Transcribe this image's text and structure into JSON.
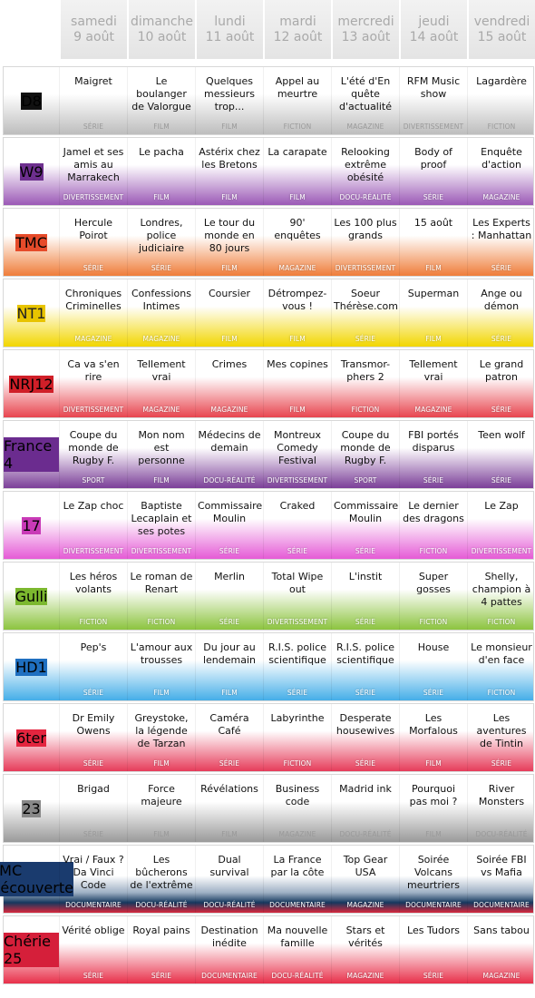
{
  "days": [
    {
      "day": "samedi",
      "date": "9 août"
    },
    {
      "day": "dimanche",
      "date": "10 août"
    },
    {
      "day": "lundi",
      "date": "11 août"
    },
    {
      "day": "mardi",
      "date": "12 août"
    },
    {
      "day": "mercredi",
      "date": "13 août"
    },
    {
      "day": "jeudi",
      "date": "14 août"
    },
    {
      "day": "vendredi",
      "date": "15 août"
    }
  ],
  "channels": [
    {
      "logo": "D8",
      "programs": [
        {
          "title": "Maigret",
          "genre": "SÉRIE"
        },
        {
          "title": "Le boulanger de Valorgue",
          "genre": "FILM"
        },
        {
          "title": "Quelques messieurs trop...",
          "genre": "FILM"
        },
        {
          "title": "Appel au meurtre",
          "genre": "FICTION"
        },
        {
          "title": "L'été d'En quête d'actualité",
          "genre": "MAGAZINE"
        },
        {
          "title": "RFM Music show",
          "genre": "DIVERTISSEMENT"
        },
        {
          "title": "Lagardère",
          "genre": "FICTION"
        }
      ]
    },
    {
      "logo": "W9",
      "programs": [
        {
          "title": "Jamel et ses amis au Marrakech",
          "genre": "DIVERTISSEMENT"
        },
        {
          "title": "Le pacha",
          "genre": "FILM"
        },
        {
          "title": "Astérix chez les Bretons",
          "genre": "FILM"
        },
        {
          "title": "La carapate",
          "genre": "FILM"
        },
        {
          "title": "Relooking extrême obésité",
          "genre": "DOCU-RÉALITÉ"
        },
        {
          "title": "Body of proof",
          "genre": "SÉRIE"
        },
        {
          "title": "Enquête d'action",
          "genre": "MAGAZINE"
        }
      ]
    },
    {
      "logo": "TMC",
      "programs": [
        {
          "title": "Hercule Poirot",
          "genre": "SÉRIE"
        },
        {
          "title": "Londres, police judiciaire",
          "genre": "SÉRIE"
        },
        {
          "title": "Le tour du monde en 80 jours",
          "genre": "FILM"
        },
        {
          "title": "90' enquêtes",
          "genre": "MAGAZINE"
        },
        {
          "title": "Les 100 plus grands",
          "genre": "DIVERTISSEMENT"
        },
        {
          "title": "15 août",
          "genre": "FILM"
        },
        {
          "title": "Les Experts : Manhattan",
          "genre": "SÉRIE"
        }
      ]
    },
    {
      "logo": "NT1",
      "programs": [
        {
          "title": "Chroniques Criminelles",
          "genre": "MAGAZINE"
        },
        {
          "title": "Confessions Intimes",
          "genre": "MAGAZINE"
        },
        {
          "title": "Coursier",
          "genre": "FILM"
        },
        {
          "title": "Détrompez-vous !",
          "genre": "FILM"
        },
        {
          "title": "Soeur Thérèse.com",
          "genre": "SÉRIE"
        },
        {
          "title": "Superman",
          "genre": "FILM"
        },
        {
          "title": "Ange ou démon",
          "genre": "SÉRIE"
        }
      ]
    },
    {
      "logo": "NRJ12",
      "programs": [
        {
          "title": "Ca va s'en rire",
          "genre": "DIVERTISSEMENT"
        },
        {
          "title": "Tellement vrai",
          "genre": "MAGAZINE"
        },
        {
          "title": "Crimes",
          "genre": "MAGAZINE"
        },
        {
          "title": "Mes copines",
          "genre": "FILM"
        },
        {
          "title": "Transmor-phers 2",
          "genre": "FICTION"
        },
        {
          "title": "Tellement vrai",
          "genre": "MAGAZINE"
        },
        {
          "title": "Le grand patron",
          "genre": "SÉRIE"
        }
      ]
    },
    {
      "logo": "France 4",
      "programs": [
        {
          "title": "Coupe du monde de Rugby F.",
          "genre": "SPORT"
        },
        {
          "title": "Mon nom est personne",
          "genre": "FILM"
        },
        {
          "title": "Médecins de demain",
          "genre": "DOCU-RÉALITÉ"
        },
        {
          "title": "Montreux Comedy Festival",
          "genre": "DIVERTISSEMENT"
        },
        {
          "title": "Coupe du monde de Rugby F.",
          "genre": "SPORT"
        },
        {
          "title": "FBI portés disparus",
          "genre": "SÉRIE"
        },
        {
          "title": "Teen wolf",
          "genre": "SÉRIE"
        }
      ]
    },
    {
      "logo": "17",
      "programs": [
        {
          "title": "Le Zap choc",
          "genre": "DIVERTISSEMENT"
        },
        {
          "title": "Baptiste Lecaplain et ses potes",
          "genre": "DIVERTISSEMENT"
        },
        {
          "title": "Commissaire Moulin",
          "genre": "SÉRIE"
        },
        {
          "title": "Craked",
          "genre": "SÉRIE"
        },
        {
          "title": "Commissaire Moulin",
          "genre": "SÉRIE"
        },
        {
          "title": "Le dernier des dragons",
          "genre": "FICTION"
        },
        {
          "title": "Le Zap",
          "genre": "DIVERTISSEMENT"
        }
      ]
    },
    {
      "logo": "Gulli",
      "programs": [
        {
          "title": "Les héros volants",
          "genre": "FICTION"
        },
        {
          "title": "Le roman de Renart",
          "genre": "FICTION"
        },
        {
          "title": "Merlin",
          "genre": "SÉRIE"
        },
        {
          "title": "Total Wipe out",
          "genre": "DIVERTISSEMENT"
        },
        {
          "title": "L'instit",
          "genre": "SÉRIE"
        },
        {
          "title": "Super gosses",
          "genre": "FICTION"
        },
        {
          "title": "Shelly, champion à 4 pattes",
          "genre": "FICTION"
        }
      ]
    },
    {
      "logo": "HD1",
      "programs": [
        {
          "title": "Pep's",
          "genre": "SÉRIE"
        },
        {
          "title": "L'amour aux trousses",
          "genre": "FILM"
        },
        {
          "title": "Du jour au lendemain",
          "genre": "FILM"
        },
        {
          "title": "R.I.S. police scientifique",
          "genre": "SÉRIE"
        },
        {
          "title": "R.I.S. police scientifique",
          "genre": "SÉRIE"
        },
        {
          "title": "House",
          "genre": "SÉRIE"
        },
        {
          "title": "Le monsieur d'en face",
          "genre": "FICTION"
        }
      ]
    },
    {
      "logo": "6ter",
      "programs": [
        {
          "title": "Dr Emily Owens",
          "genre": "SÉRIE"
        },
        {
          "title": "Greystoke, la légende de Tarzan",
          "genre": "FILM"
        },
        {
          "title": "Caméra Café",
          "genre": "SÉRIE"
        },
        {
          "title": "Labyrinthe",
          "genre": "FICTION"
        },
        {
          "title": "Desperate housewives",
          "genre": "SÉRIE"
        },
        {
          "title": "Les Morfalous",
          "genre": "FILM"
        },
        {
          "title": "Les aventures de Tintin",
          "genre": "SÉRIE"
        }
      ]
    },
    {
      "logo": "23",
      "programs": [
        {
          "title": "Brigad",
          "genre": "SÉRIE"
        },
        {
          "title": "Force majeure",
          "genre": "FILM"
        },
        {
          "title": "Révélations",
          "genre": "FILM"
        },
        {
          "title": "Business code",
          "genre": "MAGAZINE"
        },
        {
          "title": "Madrid ink",
          "genre": "DOCU-RÉALITÉ"
        },
        {
          "title": "Pourquoi pas moi ?",
          "genre": "FILM"
        },
        {
          "title": "River Monsters",
          "genre": "DOCU-RÉALITÉ"
        }
      ]
    },
    {
      "logo": "RMC Découverte",
      "programs": [
        {
          "title": "Vrai / Faux ? Da Vinci Code",
          "genre": "DOCUMENTAIRE"
        },
        {
          "title": "Les bûcherons de l'extrême",
          "genre": "DOCU-RÉALITÉ"
        },
        {
          "title": "Dual survival",
          "genre": "DOCU-RÉALITÉ"
        },
        {
          "title": "La France par la côte",
          "genre": "DOCUMENTAIRE"
        },
        {
          "title": "Top Gear USA",
          "genre": "MAGAZINE"
        },
        {
          "title": "Soirée Volcans meurtriers",
          "genre": "DOCUMENTAIRE"
        },
        {
          "title": "Soirée FBI vs Mafia",
          "genre": "DOCUMENTAIRE"
        }
      ]
    },
    {
      "logo": "Chérie 25",
      "programs": [
        {
          "title": "Vérité oblige",
          "genre": "SÉRIE"
        },
        {
          "title": "Royal pains",
          "genre": "SÉRIE"
        },
        {
          "title": "Destination inédite",
          "genre": "DOCUMENTAIRE"
        },
        {
          "title": "Ma nouvelle famille",
          "genre": "DOCU-RÉALITÉ"
        },
        {
          "title": "Stars et vérités",
          "genre": "MAGAZINE"
        },
        {
          "title": "Les Tudors",
          "genre": "SÉRIE"
        },
        {
          "title": "Sans tabou",
          "genre": "MAGAZINE"
        }
      ]
    }
  ]
}
